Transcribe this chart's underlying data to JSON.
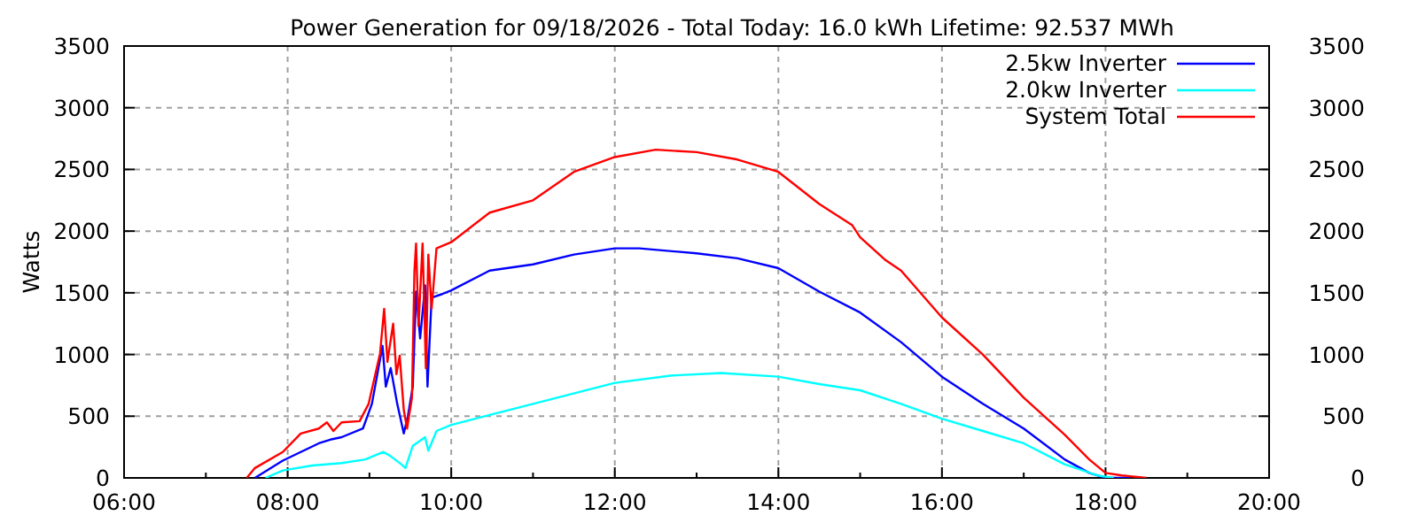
{
  "chart_data": {
    "type": "line",
    "title": "Power Generation for 09/18/2026 - Total Today: 16.0 kWh   Lifetime: 92.537 MWh",
    "ylabel": "Watts",
    "xlim": [
      6,
      20
    ],
    "xticks": [
      {
        "value": 6,
        "label": "06:00"
      },
      {
        "value": 7,
        "label": null
      },
      {
        "value": 8,
        "label": "08:00"
      },
      {
        "value": 9,
        "label": null
      },
      {
        "value": 10,
        "label": "10:00"
      },
      {
        "value": 11,
        "label": null
      },
      {
        "value": 12,
        "label": "12:00"
      },
      {
        "value": 13,
        "label": null
      },
      {
        "value": 14,
        "label": "14:00"
      },
      {
        "value": 15,
        "label": null
      },
      {
        "value": 16,
        "label": "16:00"
      },
      {
        "value": 17,
        "label": null
      },
      {
        "value": 18,
        "label": "18:00"
      },
      {
        "value": 19,
        "label": null
      },
      {
        "value": 20,
        "label": "20:00"
      }
    ],
    "ylim": [
      0,
      3500
    ],
    "yticks": [
      0,
      500,
      1000,
      1500,
      2000,
      2500,
      3000,
      3500
    ],
    "y2lim": [
      0,
      3500
    ],
    "y2ticks": [
      0,
      500,
      1000,
      1500,
      2000,
      2500,
      3000,
      3500
    ],
    "grid": true,
    "legend": "top right",
    "line_style": "solid",
    "marker": "none",
    "series": [
      {
        "name": "2.5kw Inverter",
        "color": "#0000ff",
        "x": [
          7.6,
          7.94,
          8.16,
          8.38,
          8.52,
          8.66,
          8.92,
          9.03,
          9.16,
          9.2,
          9.26,
          9.34,
          9.42,
          9.47,
          9.53,
          9.57,
          9.62,
          9.68,
          9.71,
          9.76,
          9.89,
          10,
          10.47,
          11,
          11.5,
          12,
          12.3,
          13,
          13.5,
          14,
          14.5,
          15,
          15.5,
          16,
          16.5,
          17,
          17.5,
          17.8,
          18,
          18.3
        ],
        "values": [
          0,
          140,
          210,
          280,
          310,
          330,
          400,
          600,
          1070,
          740,
          890,
          600,
          360,
          500,
          740,
          1510,
          1130,
          1560,
          740,
          1460,
          1490,
          1520,
          1680,
          1730,
          1810,
          1860,
          1860,
          1820,
          1780,
          1700,
          1510,
          1340,
          1100,
          820,
          600,
          400,
          150,
          40,
          0,
          0
        ]
      },
      {
        "name": "2.0kw Inverter",
        "color": "#00ffff",
        "x": [
          7.73,
          7.94,
          8.3,
          8.66,
          8.95,
          9.17,
          9.25,
          9.39,
          9.44,
          9.53,
          9.68,
          9.72,
          9.82,
          10,
          10.47,
          11,
          12,
          12.7,
          13.3,
          14,
          14.5,
          15,
          15.5,
          16,
          16.5,
          17,
          17.5,
          17.9,
          18.1
        ],
        "values": [
          0,
          60,
          100,
          120,
          150,
          210,
          180,
          110,
          80,
          260,
          330,
          220,
          380,
          430,
          510,
          600,
          770,
          830,
          850,
          820,
          760,
          710,
          600,
          480,
          380,
          280,
          110,
          20,
          0
        ]
      },
      {
        "name": "System Total",
        "color": "#ff0000",
        "x": [
          7.5,
          7.6,
          7.94,
          8.16,
          8.38,
          8.48,
          8.56,
          8.66,
          8.88,
          8.99,
          9.13,
          9.18,
          9.22,
          9.29,
          9.33,
          9.37,
          9.42,
          9.46,
          9.52,
          9.55,
          9.57,
          9.6,
          9.65,
          9.69,
          9.72,
          9.76,
          9.82,
          10,
          10.47,
          11,
          11.5,
          12,
          12.5,
          13,
          13.5,
          14,
          14.5,
          14.9,
          15,
          15.3,
          15.5,
          16,
          16.5,
          17,
          17.5,
          17.8,
          18,
          18.2,
          18.5
        ],
        "values": [
          0,
          80,
          210,
          360,
          400,
          450,
          380,
          450,
          460,
          600,
          1010,
          1370,
          940,
          1250,
          840,
          990,
          550,
          400,
          650,
          1670,
          1900,
          1230,
          1900,
          890,
          1810,
          1370,
          1860,
          1910,
          2150,
          2250,
          2480,
          2600,
          2660,
          2640,
          2580,
          2480,
          2220,
          2050,
          1950,
          1770,
          1680,
          1300,
          1000,
          650,
          350,
          150,
          40,
          20,
          0
        ]
      }
    ]
  }
}
